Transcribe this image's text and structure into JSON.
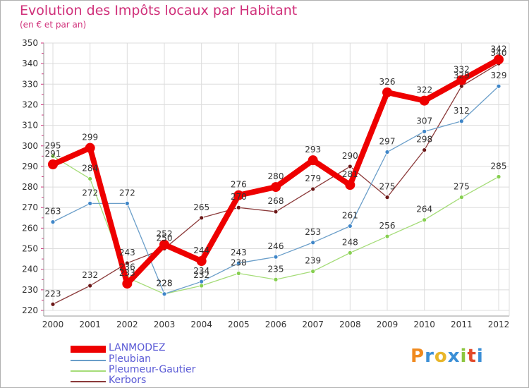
{
  "chart_data": {
    "type": "line",
    "title": "Evolution des Impôts locaux par Habitant",
    "subtitle": "(en € et par an)",
    "xlabel": "",
    "ylabel": "",
    "categories": [
      "2000",
      "2001",
      "2002",
      "2003",
      "2004",
      "2005",
      "2006",
      "2007",
      "2008",
      "2009",
      "2010",
      "2011",
      "2012"
    ],
    "ylim": [
      220,
      350
    ],
    "yticks": [
      220,
      230,
      240,
      250,
      260,
      270,
      280,
      290,
      300,
      310,
      320,
      330,
      340,
      350
    ],
    "grid": true,
    "series": [
      {
        "name": "LANMODEZ",
        "color": "#ee0000",
        "point_color": "#ee0000",
        "values": [
          291,
          299,
          233,
          252,
          244,
          276,
          280,
          293,
          281,
          326,
          322,
          332,
          342
        ]
      },
      {
        "name": "Pleubian",
        "color": "#6a9ec9",
        "point_color": "#3f86c8",
        "values": [
          263,
          272,
          272,
          228,
          234,
          243,
          246,
          253,
          261,
          297,
          307,
          312,
          329
        ]
      },
      {
        "name": "Pleumeur-Gautier",
        "color": "#a5dc78",
        "point_color": "#86cf50",
        "values": [
          295,
          284,
          236,
          228,
          232,
          238,
          235,
          239,
          248,
          256,
          264,
          275,
          285
        ]
      },
      {
        "name": "Kerbors",
        "color": "#8b3a3a",
        "point_color": "#6b1717",
        "values": [
          223,
          232,
          243,
          250,
          265,
          270,
          268,
          279,
          290,
          275,
          298,
          329,
          340
        ]
      }
    ],
    "point_labels": [
      [
        "291",
        "299",
        "233",
        "252",
        "244",
        "276",
        "280",
        "293",
        "281",
        "326",
        "322",
        "332",
        "342"
      ],
      [
        "263",
        "272",
        "272",
        "228",
        "234",
        "243",
        "246",
        "253",
        "261",
        "297",
        "307",
        "312",
        "329"
      ],
      [
        "295",
        "284",
        "236",
        "228",
        "232",
        "238",
        "235",
        "239",
        "248",
        "256",
        "264",
        "275",
        "285"
      ],
      [
        "223",
        "232",
        "243",
        "250",
        "265",
        "270",
        "268",
        "279",
        "290",
        "275",
        "298",
        "329",
        "340"
      ]
    ]
  },
  "logo_text": "Proxiti",
  "logo_colors": [
    "#f08a1e",
    "#3b8fd6",
    "#e8b62a",
    "#3b8fd6",
    "#8cc63f",
    "#e24a2a",
    "#3b8fd6"
  ]
}
